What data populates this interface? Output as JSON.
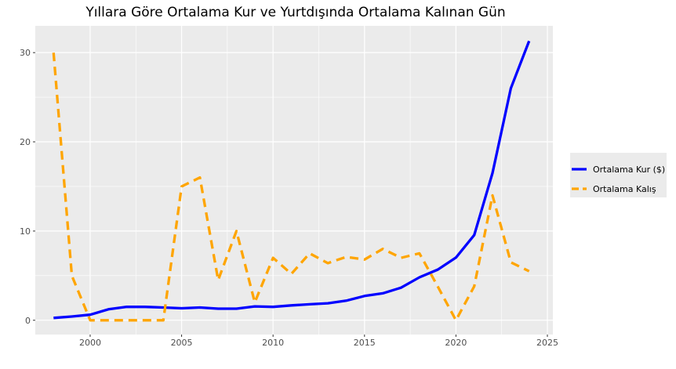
{
  "chart_data": {
    "type": "line",
    "title": "Yıllara Göre Ortalama Kur ve Yurtdışında Ortalama Kalınan Gün",
    "xlabel": "",
    "ylabel": "",
    "xlim": [
      1997,
      2025.3
    ],
    "ylim": [
      -1.6,
      33
    ],
    "x_ticks": [
      2000,
      2005,
      2010,
      2015,
      2020,
      2025
    ],
    "y_ticks": [
      0,
      10,
      20,
      30
    ],
    "grid": true,
    "legend_position": "right",
    "series": [
      {
        "name": "Ortalama Kur ($)",
        "color": "#0000ff",
        "dash": "solid",
        "x": [
          1998,
          1999,
          2000,
          2001,
          2002,
          2003,
          2004,
          2005,
          2006,
          2007,
          2008,
          2009,
          2010,
          2011,
          2012,
          2013,
          2014,
          2015,
          2016,
          2017,
          2018,
          2019,
          2020,
          2021,
          2022,
          2023,
          2024
        ],
        "values": [
          0.26,
          0.42,
          0.62,
          1.23,
          1.51,
          1.5,
          1.43,
          1.34,
          1.43,
          1.3,
          1.3,
          1.55,
          1.5,
          1.67,
          1.79,
          1.9,
          2.19,
          2.72,
          3.02,
          3.65,
          4.81,
          5.67,
          7.02,
          9.54,
          16.5,
          26.0,
          31.3
        ]
      },
      {
        "name": "Ortalama Kalış",
        "color": "#ffa500",
        "dash": "dashed",
        "x": [
          1998,
          1999,
          2000,
          2001,
          2002,
          2003,
          2004,
          2005,
          2006,
          2007,
          2008,
          2009,
          2010,
          2011,
          2012,
          2013,
          2014,
          2015,
          2016,
          2017,
          2018,
          2019,
          2020,
          2021,
          2022,
          2023,
          2024
        ],
        "values": [
          30.0,
          5.0,
          0.0,
          0.0,
          0.0,
          0.0,
          0.0,
          15.0,
          16.0,
          4.5,
          10.0,
          2.0,
          7.0,
          5.2,
          7.5,
          6.4,
          7.1,
          6.8,
          8.0,
          7.0,
          7.5,
          3.8,
          0.0,
          3.8,
          14.0,
          6.5,
          5.5
        ]
      }
    ]
  }
}
